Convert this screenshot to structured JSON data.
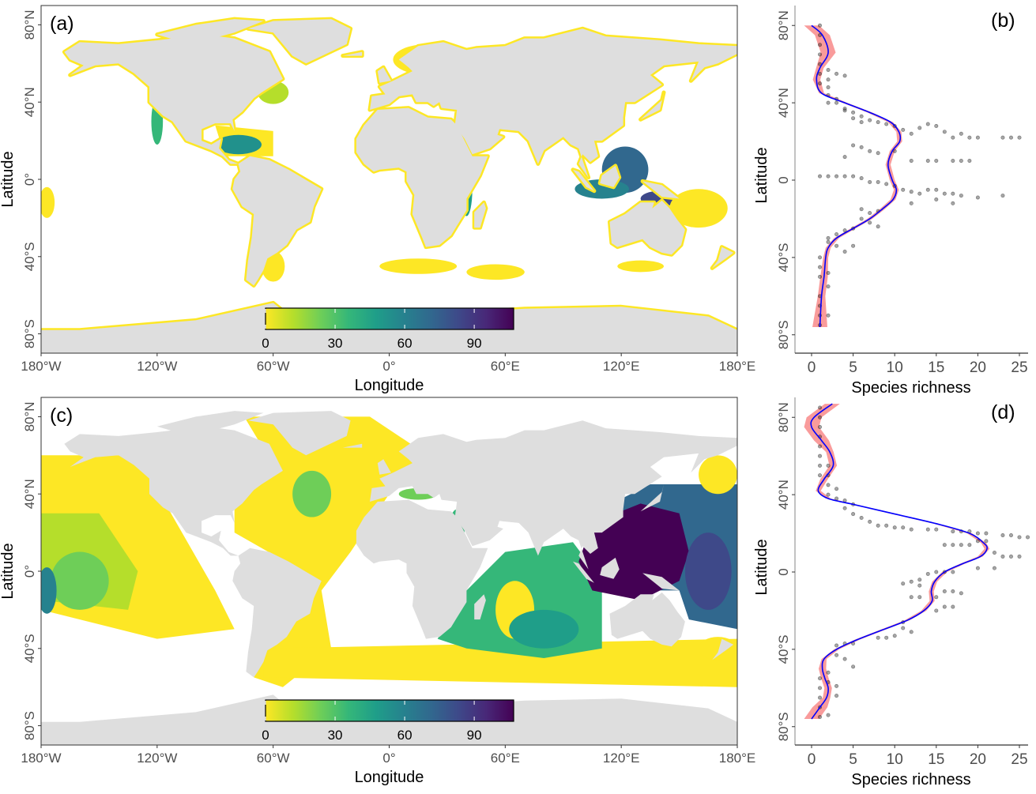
{
  "colors": {
    "land": "#dedede",
    "viridis": [
      "#fde725",
      "#b5de2b",
      "#6ece58",
      "#35b779",
      "#1f9e89",
      "#26828e",
      "#31688e",
      "#3e4989",
      "#482878",
      "#440154"
    ],
    "smooth_line": "#0000ff",
    "ci_band": "#f88a8a",
    "points": "#000000"
  },
  "chart_data": [
    {
      "type": "heatmap",
      "panel_label": "(a)",
      "xlabel": "Longitude",
      "ylabel": "Latitude",
      "xticks": [
        "180°W",
        "120°W",
        "60°W",
        "0°",
        "60°E",
        "120°E",
        "180°E"
      ],
      "xtick_values": [
        -180,
        -120,
        -60,
        0,
        60,
        120,
        180
      ],
      "yticks": [
        "80°N",
        "40°N",
        "0°",
        "40°S",
        "80°S"
      ],
      "ytick_values": [
        80,
        40,
        0,
        -40,
        -80
      ],
      "xlim": [
        -180,
        180
      ],
      "ylim": [
        -90,
        90
      ],
      "colorbar": {
        "ticks": [
          "0",
          "30",
          "60",
          "90"
        ],
        "tick_values": [
          0,
          30,
          60,
          90
        ],
        "range": [
          0,
          107
        ]
      }
    },
    {
      "type": "scatter",
      "panel_label": "(b)",
      "xlabel": "Species richness",
      "ylabel": "Latitude",
      "xticks": [
        "0",
        "5",
        "10",
        "15",
        "20",
        "25"
      ],
      "xtick_values": [
        0,
        5,
        10,
        15,
        20,
        25
      ],
      "yticks": [
        "80°N",
        "40°N",
        "0",
        "40°S",
        "80°S"
      ],
      "ytick_values": [
        80,
        40,
        0,
        -40,
        -80
      ],
      "xlim": [
        -2,
        26
      ],
      "ylim": [
        -90,
        90
      ],
      "smooth": [
        [
          0,
          80
        ],
        [
          1.3,
          75
        ],
        [
          2,
          66
        ],
        [
          1,
          58
        ],
        [
          0.6,
          52
        ],
        [
          1.2,
          45
        ],
        [
          4,
          40
        ],
        [
          7,
          35
        ],
        [
          9.5,
          30
        ],
        [
          10.5,
          25
        ],
        [
          10.6,
          20
        ],
        [
          9.7,
          15
        ],
        [
          9.2,
          8
        ],
        [
          9.7,
          0
        ],
        [
          10.2,
          -5
        ],
        [
          9.8,
          -10
        ],
        [
          8.5,
          -15
        ],
        [
          7,
          -20
        ],
        [
          5,
          -25
        ],
        [
          3,
          -30
        ],
        [
          2,
          -35
        ],
        [
          1.7,
          -40
        ],
        [
          1.5,
          -50
        ],
        [
          1.2,
          -60
        ],
        [
          1,
          -76
        ]
      ],
      "points": [
        [
          1,
          80
        ],
        [
          1,
          75
        ],
        [
          1,
          70
        ],
        [
          1,
          65
        ],
        [
          1,
          60
        ],
        [
          1,
          55
        ],
        [
          1,
          50
        ],
        [
          2,
          57
        ],
        [
          2,
          52
        ],
        [
          2,
          48
        ],
        [
          2,
          44
        ],
        [
          2,
          40
        ],
        [
          3,
          55
        ],
        [
          4,
          54
        ],
        [
          3,
          42
        ],
        [
          3,
          40
        ],
        [
          4,
          37
        ],
        [
          4,
          36
        ],
        [
          5,
          35
        ],
        [
          5,
          32
        ],
        [
          6,
          33
        ],
        [
          6,
          30
        ],
        [
          7,
          31
        ],
        [
          8,
          30
        ],
        [
          9,
          29
        ],
        [
          10,
          28
        ],
        [
          11,
          26
        ],
        [
          12,
          24
        ],
        [
          13,
          27
        ],
        [
          14,
          29
        ],
        [
          15,
          28
        ],
        [
          16,
          25
        ],
        [
          17,
          22
        ],
        [
          18,
          24
        ],
        [
          19,
          22
        ],
        [
          20,
          22
        ],
        [
          23,
          22
        ],
        [
          24,
          22
        ],
        [
          25,
          22
        ],
        [
          5,
          18
        ],
        [
          6,
          17
        ],
        [
          7,
          15
        ],
        [
          8,
          14
        ],
        [
          4,
          12
        ],
        [
          10,
          15
        ],
        [
          12,
          10
        ],
        [
          14,
          10
        ],
        [
          15,
          10
        ],
        [
          17,
          10
        ],
        [
          18,
          10
        ],
        [
          19,
          10
        ],
        [
          1,
          2
        ],
        [
          2,
          2
        ],
        [
          3,
          2
        ],
        [
          4,
          2
        ],
        [
          5,
          2
        ],
        [
          6,
          1
        ],
        [
          7,
          -1
        ],
        [
          8,
          -1
        ],
        [
          9,
          -2
        ],
        [
          10,
          -3
        ],
        [
          11,
          -5
        ],
        [
          12,
          -6
        ],
        [
          13,
          -7
        ],
        [
          14,
          -5
        ],
        [
          15,
          -5
        ],
        [
          16,
          -7
        ],
        [
          17,
          -7
        ],
        [
          18,
          -8
        ],
        [
          20,
          -9
        ],
        [
          23,
          -8
        ],
        [
          12,
          -12
        ],
        [
          15,
          -10
        ],
        [
          17,
          -12
        ],
        [
          6,
          -15
        ],
        [
          7,
          -17
        ],
        [
          8,
          -16
        ],
        [
          6,
          -20
        ],
        [
          7,
          -22
        ],
        [
          8,
          -24
        ],
        [
          4,
          -26
        ],
        [
          5,
          -25
        ],
        [
          3,
          -28
        ],
        [
          3,
          -34
        ],
        [
          2,
          -30
        ],
        [
          2,
          -32
        ],
        [
          4,
          -37
        ],
        [
          5,
          -34
        ],
        [
          1,
          -40
        ],
        [
          1,
          -45
        ],
        [
          1,
          -50
        ],
        [
          2,
          -48
        ],
        [
          2,
          -55
        ],
        [
          1,
          -60
        ],
        [
          1,
          -65
        ],
        [
          1,
          -70
        ],
        [
          1,
          -75
        ],
        [
          2,
          -70
        ]
      ]
    },
    {
      "type": "heatmap",
      "panel_label": "(c)",
      "xlabel": "Longitude",
      "ylabel": "Latitude",
      "xticks": [
        "180°W",
        "120°W",
        "60°W",
        "0°",
        "60°E",
        "120°E",
        "180°E"
      ],
      "xtick_values": [
        -180,
        -120,
        -60,
        0,
        60,
        120,
        180
      ],
      "yticks": [
        "80°N",
        "40°N",
        "0°",
        "40°S",
        "80°S"
      ],
      "ytick_values": [
        80,
        40,
        0,
        -40,
        -80
      ],
      "xlim": [
        -180,
        180
      ],
      "ylim": [
        -90,
        90
      ],
      "colorbar": {
        "ticks": [
          "0",
          "30",
          "60",
          "90"
        ],
        "tick_values": [
          0,
          30,
          60,
          90
        ],
        "range": [
          0,
          107
        ]
      }
    },
    {
      "type": "scatter",
      "panel_label": "(d)",
      "xlabel": "Species richness",
      "ylabel": "Latitude",
      "xticks": [
        "0",
        "5",
        "10",
        "15",
        "20",
        "25"
      ],
      "xtick_values": [
        0,
        5,
        10,
        15,
        20,
        25
      ],
      "yticks": [
        "80°N",
        "40°N",
        "0",
        "40°S",
        "80°S"
      ],
      "ytick_values": [
        80,
        40,
        0,
        -40,
        -80
      ],
      "xlim": [
        -2,
        26
      ],
      "ylim": [
        -90,
        90
      ],
      "smooth": [
        [
          2.5,
          87
        ],
        [
          0.3,
          80
        ],
        [
          0,
          75
        ],
        [
          1.2,
          68
        ],
        [
          2.2,
          62
        ],
        [
          2.6,
          55
        ],
        [
          1.5,
          48
        ],
        [
          0.8,
          42
        ],
        [
          2,
          38
        ],
        [
          5,
          35
        ],
        [
          10,
          30
        ],
        [
          15,
          25
        ],
        [
          19,
          20
        ],
        [
          20.7,
          15
        ],
        [
          21.1,
          12
        ],
        [
          20.3,
          8
        ],
        [
          18,
          4
        ],
        [
          16,
          0
        ],
        [
          14.8,
          -5
        ],
        [
          14.4,
          -10
        ],
        [
          14.5,
          -15
        ],
        [
          13.5,
          -20
        ],
        [
          11.5,
          -25
        ],
        [
          8.5,
          -30
        ],
        [
          5.5,
          -35
        ],
        [
          3,
          -40
        ],
        [
          1.5,
          -45
        ],
        [
          1.3,
          -50
        ],
        [
          1.6,
          -55
        ],
        [
          2,
          -60
        ],
        [
          1.8,
          -65
        ],
        [
          1,
          -70
        ],
        [
          0,
          -76
        ]
      ],
      "points": [
        [
          1,
          85
        ],
        [
          1,
          80
        ],
        [
          1,
          75
        ],
        [
          1,
          70
        ],
        [
          1,
          65
        ],
        [
          1,
          60
        ],
        [
          1,
          55
        ],
        [
          1,
          50
        ],
        [
          2,
          55
        ],
        [
          2,
          50
        ],
        [
          2,
          45
        ],
        [
          2,
          40
        ],
        [
          3,
          43
        ],
        [
          3,
          38
        ],
        [
          4,
          37
        ],
        [
          4,
          33
        ],
        [
          5,
          35
        ],
        [
          5,
          30
        ],
        [
          6,
          28
        ],
        [
          7,
          26
        ],
        [
          8,
          24
        ],
        [
          9,
          24
        ],
        [
          10,
          23
        ],
        [
          11,
          23
        ],
        [
          12,
          22
        ],
        [
          14,
          22
        ],
        [
          15,
          22
        ],
        [
          17,
          21
        ],
        [
          18,
          21
        ],
        [
          19,
          21
        ],
        [
          20,
          20
        ],
        [
          21,
          20
        ],
        [
          23,
          19
        ],
        [
          24,
          19
        ],
        [
          25,
          18
        ],
        [
          26,
          18
        ],
        [
          16,
          14
        ],
        [
          17,
          14
        ],
        [
          18,
          14
        ],
        [
          19,
          14
        ],
        [
          20,
          16
        ],
        [
          21,
          16
        ],
        [
          22,
          10
        ],
        [
          23,
          8
        ],
        [
          24,
          8
        ],
        [
          25,
          8
        ],
        [
          20,
          2
        ],
        [
          22,
          2
        ],
        [
          17,
          0
        ],
        [
          16,
          0
        ],
        [
          15,
          0
        ],
        [
          14,
          -1
        ],
        [
          11,
          -6
        ],
        [
          12,
          -5
        ],
        [
          13,
          -4
        ],
        [
          13,
          -7
        ],
        [
          12,
          -13
        ],
        [
          13,
          -13
        ],
        [
          15,
          -13
        ],
        [
          16,
          -10
        ],
        [
          17,
          -10
        ],
        [
          18,
          -11
        ],
        [
          15,
          -20
        ],
        [
          16,
          -18
        ],
        [
          17,
          -18
        ],
        [
          11,
          -26
        ],
        [
          11,
          -29
        ],
        [
          12,
          -31
        ],
        [
          9,
          -34
        ],
        [
          10,
          -33
        ],
        [
          8,
          -34
        ],
        [
          5,
          -37
        ],
        [
          4,
          -37
        ],
        [
          3,
          -38
        ],
        [
          4,
          -45
        ],
        [
          3,
          -43
        ],
        [
          5,
          -49
        ],
        [
          2,
          -52
        ],
        [
          2,
          -57
        ],
        [
          3,
          -59
        ],
        [
          3,
          -64
        ],
        [
          1,
          -55
        ],
        [
          1,
          -60
        ],
        [
          1,
          -65
        ],
        [
          1,
          -70
        ],
        [
          1,
          -75
        ],
        [
          2,
          -74
        ]
      ]
    }
  ]
}
